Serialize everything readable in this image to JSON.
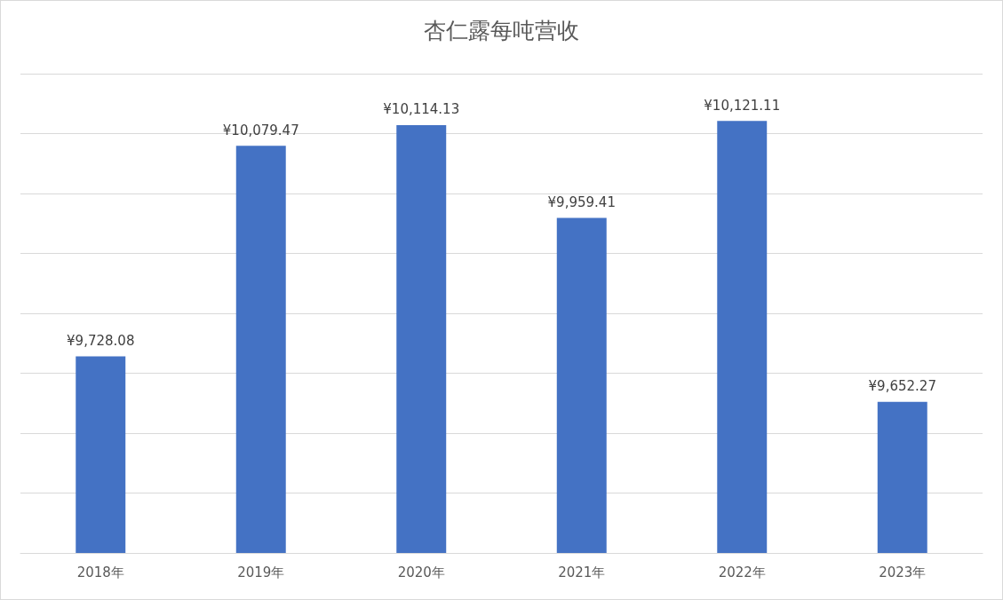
{
  "chart_data": {
    "type": "bar",
    "title": "杏仁露每吨营收",
    "categories": [
      "2018年",
      "2019年",
      "2020年",
      "2021年",
      "2022年",
      "2023年"
    ],
    "values": [
      9728.08,
      10079.47,
      10114.13,
      9959.41,
      10121.11,
      9652.27
    ],
    "value_labels": [
      "¥9,728.08",
      "¥10,079.47",
      "¥10,114.13",
      "¥9,959.41",
      "¥10,121.11",
      "¥9,652.27"
    ],
    "color": "#4472c4",
    "ylim": [
      9400,
      10200
    ],
    "yticks": [
      {
        "value": 9400,
        "label": null
      },
      {
        "value": 9500,
        "label": null
      },
      {
        "value": 9600,
        "label": null
      },
      {
        "value": 9700,
        "label": null
      },
      {
        "value": 9800,
        "label": null
      },
      {
        "value": 9900,
        "label": null
      },
      {
        "value": 10000,
        "label": null
      },
      {
        "value": 10100,
        "label": null
      },
      {
        "value": 10200,
        "label": null
      }
    ],
    "tick_labels": "x",
    "grid": "y"
  }
}
